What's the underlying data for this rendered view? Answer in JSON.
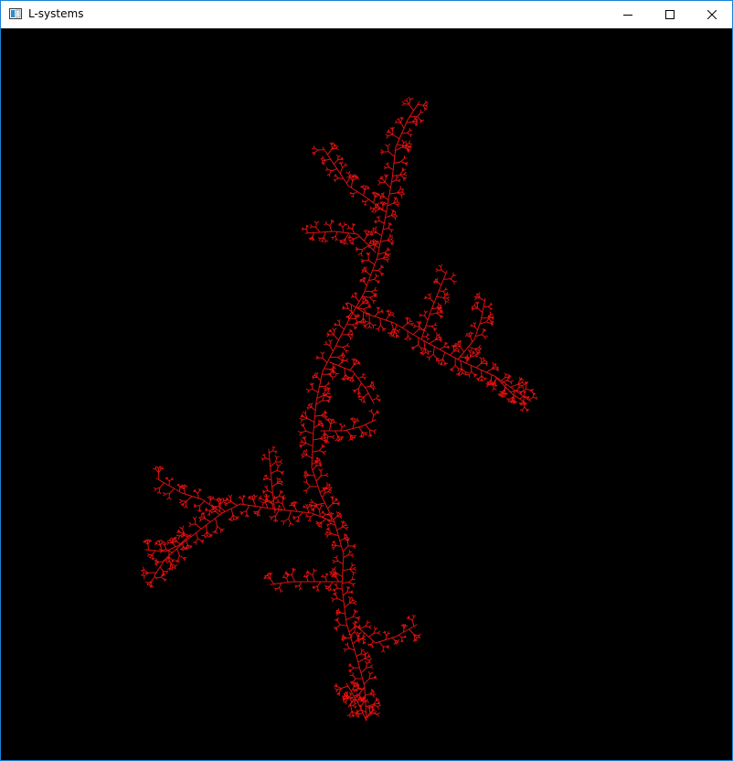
{
  "window": {
    "title": "L-systems",
    "icons": {
      "app": "app-window-icon",
      "minimize": "minimize-icon",
      "maximize": "maximize-icon",
      "close": "close-icon"
    }
  },
  "canvas": {
    "background_color": "#000000",
    "stroke_color": "#e01010",
    "render": "fractal-plant-tree"
  },
  "colors": {
    "border": "#1883d7",
    "titlebar": "#ffffff",
    "title_text": "#000000"
  }
}
